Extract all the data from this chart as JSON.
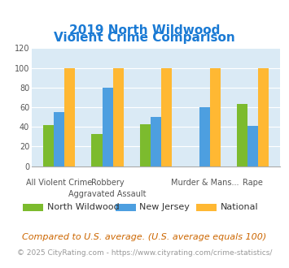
{
  "title_line1": "2019 North Wildwood",
  "title_line2": "Violent Crime Comparison",
  "north_wildwood": [
    42,
    33,
    43,
    0,
    63
  ],
  "new_jersey": [
    55,
    80,
    50,
    60,
    41
  ],
  "national": [
    100,
    100,
    100,
    100,
    100
  ],
  "row1_labels": [
    "",
    "Robbery",
    "",
    "Murder & Mans...",
    ""
  ],
  "row2_labels": [
    "All Violent Crime",
    "Aggravated Assault",
    "",
    "",
    "Rape"
  ],
  "color_nw": "#7cbb2e",
  "color_nj": "#4d9fe0",
  "color_nat": "#ffb833",
  "bg_color": "#daeaf5",
  "ylim": [
    0,
    120
  ],
  "yticks": [
    0,
    20,
    40,
    60,
    80,
    100,
    120
  ],
  "legend_labels": [
    "North Wildwood",
    "New Jersey",
    "National"
  ],
  "footnote1": "Compared to U.S. average. (U.S. average equals 100)",
  "footnote2": "© 2025 CityRating.com - https://www.cityrating.com/crime-statistics/",
  "title_color": "#1a7ad4",
  "footnote1_color": "#cc6600",
  "footnote2_color": "#999999",
  "legend_text_color": "#333333",
  "axis_label_color": "#555555"
}
